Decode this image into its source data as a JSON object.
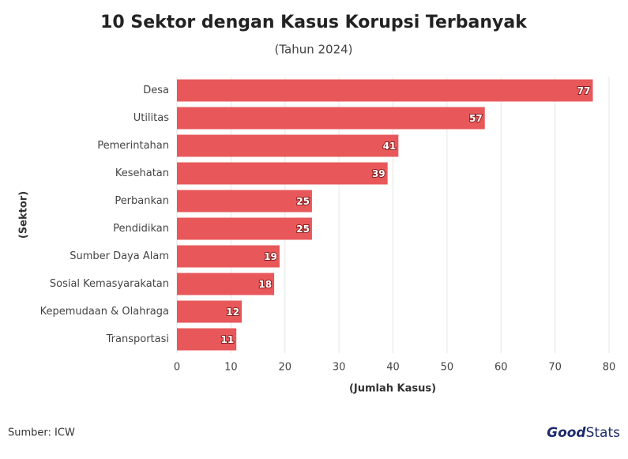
{
  "chart_data": {
    "type": "hbar",
    "title": "10 Sektor dengan Kasus Korupsi Terbanyak",
    "subtitle": "(Tahun 2024)",
    "categories": [
      "Desa",
      "Utilitas",
      "Pemerintahan",
      "Kesehatan",
      "Perbankan",
      "Pendidikan",
      "Sumber Daya Alam",
      "Sosial Kemasyarakatan",
      "Kepemudaan & Olahraga",
      "Transportasi"
    ],
    "values": [
      77,
      57,
      41,
      39,
      25,
      25,
      19,
      18,
      12,
      11
    ],
    "color": "#e8585a",
    "xlim": [
      0,
      80
    ],
    "xticks": [
      0,
      10,
      20,
      30,
      40,
      50,
      60,
      70,
      80
    ],
    "grid": true,
    "xlabel": "(Jumlah Kasus)",
    "ylabel": "(Sektor)"
  },
  "source": "Sumber: ICW",
  "logo": {
    "bold": "Good",
    "light": "Stats"
  }
}
